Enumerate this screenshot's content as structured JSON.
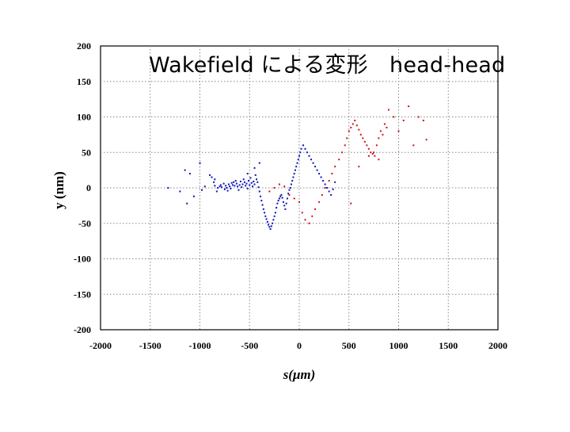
{
  "chart_data": {
    "type": "scatter",
    "title": "Wakefield による変形　head-head",
    "xlabel": "s(μm)",
    "ylabel": "y (nm)",
    "xlim": [
      -2000,
      2000
    ],
    "ylim": [
      -200,
      200
    ],
    "x_ticks": [
      -2000,
      -1500,
      -1000,
      -500,
      0,
      500,
      1000,
      1500,
      2000
    ],
    "y_ticks": [
      200,
      150,
      100,
      50,
      0,
      -50,
      -100,
      -150,
      -200
    ],
    "grid": true,
    "legend": "none",
    "series": [
      {
        "color": "#0a14b4",
        "x": [
          -1320,
          -1200,
          -1150,
          -1130,
          -1100,
          -1060,
          -1000,
          -980,
          -950,
          -900,
          -880,
          -860,
          -850,
          -830,
          -820,
          -800,
          -790,
          -780,
          -760,
          -750,
          -740,
          -730,
          -720,
          -710,
          -700,
          -690,
          -680,
          -670,
          -660,
          -650,
          -640,
          -630,
          -620,
          -610,
          -600,
          -590,
          -580,
          -570,
          -560,
          -550,
          -540,
          -530,
          -520,
          -510,
          -500,
          -490,
          -480,
          -470,
          -460,
          -450,
          -440,
          -430,
          -420,
          -410,
          -400,
          -390,
          -380,
          -370,
          -360,
          -350,
          -340,
          -330,
          -320,
          -310,
          -300,
          -290,
          -280,
          -270,
          -260,
          -250,
          -240,
          -230,
          -220,
          -210,
          -200,
          -190,
          -180,
          -170,
          -160,
          -150,
          -140,
          -130,
          -120,
          -110,
          -100,
          -90,
          -80,
          -70,
          -60,
          -50,
          -40,
          -30,
          -20,
          -10,
          0,
          10,
          20,
          40,
          60,
          80,
          100,
          120,
          140,
          160,
          180,
          200,
          220,
          240,
          260,
          280,
          300,
          320,
          340,
          360,
          -850,
          -520,
          -450,
          -400
        ],
        "y": [
          0,
          -5,
          25,
          -22,
          20,
          -12,
          35,
          -3,
          2,
          18,
          15,
          8,
          3,
          -5,
          0,
          2,
          4,
          1,
          6,
          -2,
          3,
          0,
          -4,
          5,
          2,
          -1,
          7,
          4,
          8,
          3,
          10,
          6,
          2,
          -3,
          4,
          9,
          1,
          5,
          12,
          8,
          3,
          6,
          -1,
          10,
          4,
          14,
          7,
          2,
          9,
          5,
          18,
          12,
          8,
          1,
          -5,
          -12,
          -18,
          -24,
          -30,
          -35,
          -40,
          -44,
          -48,
          -52,
          -55,
          -58,
          -54,
          -50,
          -45,
          -40,
          -35,
          -28,
          -22,
          -18,
          -15,
          -12,
          -10,
          -14,
          -20,
          -25,
          -30,
          -22,
          -15,
          -8,
          -3,
          0,
          5,
          10,
          15,
          20,
          25,
          30,
          35,
          40,
          45,
          50,
          55,
          60,
          55,
          50,
          45,
          40,
          35,
          30,
          25,
          20,
          15,
          10,
          5,
          0,
          -5,
          -10,
          -2,
          8,
          12,
          20,
          28,
          35
        ],
        "points_note": "dense blue cloud from about -700 to 150 µm, near y=0 then dipping to -60 around -100 µm and rising to ~60 near 350 µm"
      },
      {
        "color": "#c81414",
        "x": [
          -300,
          -250,
          -200,
          -150,
          -100,
          -50,
          0,
          30,
          60,
          100,
          130,
          160,
          200,
          230,
          260,
          300,
          330,
          360,
          400,
          430,
          460,
          480,
          500,
          520,
          540,
          560,
          580,
          600,
          620,
          640,
          660,
          680,
          700,
          720,
          740,
          760,
          780,
          800,
          820,
          840,
          860,
          880,
          900,
          950,
          1000,
          1050,
          1100,
          1150,
          1200,
          1250,
          1280,
          520,
          600,
          700,
          750,
          800
        ],
        "y": [
          -5,
          0,
          5,
          2,
          -10,
          -15,
          -20,
          -35,
          -45,
          -50,
          -40,
          -30,
          -20,
          -10,
          0,
          10,
          20,
          30,
          40,
          50,
          60,
          70,
          80,
          85,
          90,
          95,
          88,
          82,
          75,
          70,
          65,
          60,
          55,
          50,
          48,
          45,
          60,
          70,
          80,
          75,
          90,
          85,
          110,
          100,
          80,
          95,
          115,
          60,
          100,
          95,
          68,
          -22,
          30,
          45,
          50,
          40
        ]
      }
    ]
  }
}
